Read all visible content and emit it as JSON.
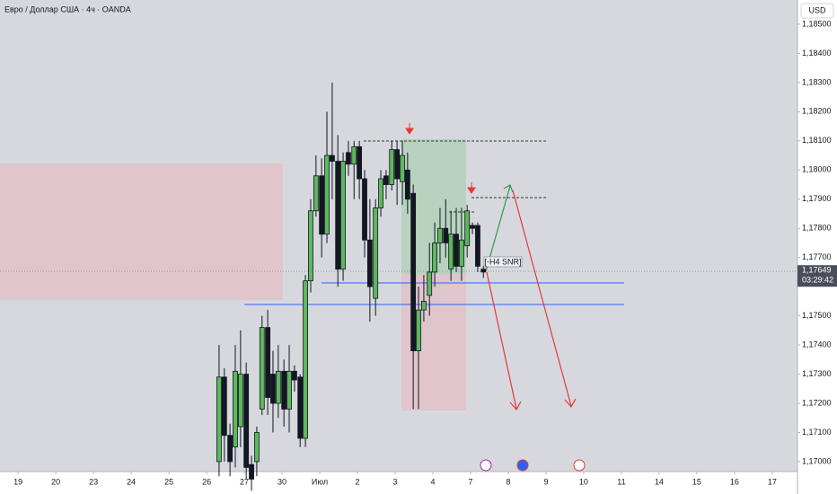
{
  "chart_data": {
    "type": "candlestick",
    "title": "Евро / Доллар США · 4ч · OANDA",
    "currency": "USD",
    "annotation": "[-H4 SNR]",
    "last_price": {
      "value": 1.17649,
      "label": "1,17649"
    },
    "countdown": "03:29:42",
    "up_color": "#5cb85c",
    "down_color": "#131722",
    "xlim": [
      -0.48,
      20.67
    ],
    "xticks": [
      {
        "value": 0,
        "label": "19"
      },
      {
        "value": 1,
        "label": "20"
      },
      {
        "value": 2,
        "label": "23"
      },
      {
        "value": 3,
        "label": "24"
      },
      {
        "value": 4,
        "label": "25"
      },
      {
        "value": 5,
        "label": "26"
      },
      {
        "value": 6,
        "label": "27"
      },
      {
        "value": 7,
        "label": "30"
      },
      {
        "value": 8,
        "label": "Июл"
      },
      {
        "value": 9,
        "label": "2"
      },
      {
        "value": 10,
        "label": "3"
      },
      {
        "value": 11,
        "label": "4"
      },
      {
        "value": 12,
        "label": "7"
      },
      {
        "value": 13,
        "label": "8"
      },
      {
        "value": 14,
        "label": "9"
      },
      {
        "value": 15,
        "label": "10"
      },
      {
        "value": 16,
        "label": "11"
      },
      {
        "value": 17,
        "label": "14"
      },
      {
        "value": 18,
        "label": "15"
      },
      {
        "value": 19,
        "label": "16"
      },
      {
        "value": 20,
        "label": "17"
      }
    ],
    "ylim": [
      1.16966,
      1.18583
    ],
    "yticks": [
      {
        "value": 1.17,
        "label": "1,17000"
      },
      {
        "value": 1.171,
        "label": "1,17100"
      },
      {
        "value": 1.172,
        "label": "1,17200"
      },
      {
        "value": 1.173,
        "label": "1,17300"
      },
      {
        "value": 1.174,
        "label": "1,17400"
      },
      {
        "value": 1.175,
        "label": "1,17500"
      },
      {
        "value": 1.177,
        "label": "1,17700"
      },
      {
        "value": 1.178,
        "label": "1,17800"
      },
      {
        "value": 1.179,
        "label": "1,17900"
      },
      {
        "value": 1.18,
        "label": "1,18000"
      },
      {
        "value": 1.181,
        "label": "1,18100"
      },
      {
        "value": 1.182,
        "label": "1,18200"
      },
      {
        "value": 1.183,
        "label": "1,18300"
      },
      {
        "value": 1.184,
        "label": "1,18400"
      },
      {
        "value": 1.185,
        "label": "1,18500"
      }
    ],
    "x": [
      5.33,
      5.47,
      5.62,
      5.76,
      5.9,
      6.05,
      6.19,
      6.33,
      6.47,
      6.62,
      6.76,
      6.9,
      7.05,
      7.19,
      7.33,
      7.48,
      7.62,
      7.76,
      7.9,
      8.05,
      8.19,
      8.33,
      8.48,
      8.62,
      8.76,
      8.91,
      9.05,
      9.19,
      9.33,
      9.48,
      9.62,
      9.76,
      9.91,
      10.05,
      10.19,
      10.33,
      10.48,
      10.62,
      10.76,
      10.91,
      11.05,
      11.19,
      11.34,
      11.48,
      11.62,
      11.76,
      11.91,
      12.05,
      12.19,
      12.34
    ],
    "open": [
      1.17,
      1.1729,
      1.1709,
      1.1705,
      1.1712,
      1.173,
      1.1699,
      1.17,
      1.1718,
      1.1746,
      1.173,
      1.172,
      1.1731,
      1.1718,
      1.1731,
      1.1729,
      1.1708,
      1.1762,
      1.1786,
      1.1798,
      1.1778,
      1.1805,
      1.1803,
      1.1766,
      1.1806,
      1.1802,
      1.1808,
      1.1797,
      1.1776,
      1.1756,
      1.1787,
      1.1798,
      1.1795,
      1.1807,
      1.1796,
      1.18,
      1.1792,
      1.1738,
      1.1752,
      1.1757,
      1.1765,
      1.1775,
      1.178,
      1.1766,
      1.1778,
      1.1767,
      1.1774,
      1.1781,
      1.1781,
      1.1766
    ],
    "high": [
      1.174,
      1.1732,
      1.1713,
      1.174,
      1.1745,
      1.1734,
      1.1702,
      1.1712,
      1.175,
      1.1752,
      1.1738,
      1.174,
      1.1735,
      1.174,
      1.1733,
      1.173,
      1.1764,
      1.179,
      1.1805,
      1.1804,
      1.182,
      1.183,
      1.1812,
      1.1806,
      1.181,
      1.181,
      1.181,
      1.18,
      1.179,
      1.179,
      1.18,
      1.18,
      1.181,
      1.181,
      1.181,
      1.1806,
      1.1795,
      1.176,
      1.1764,
      1.1775,
      1.1782,
      1.1787,
      1.179,
      1.1786,
      1.1787,
      1.1787,
      1.1788,
      1.1782,
      1.1782,
      1.1767
    ],
    "low": [
      1.1695,
      1.17,
      1.1695,
      1.1698,
      1.1705,
      1.1694,
      1.169,
      1.1695,
      1.1716,
      1.1716,
      1.171,
      1.1715,
      1.1712,
      1.171,
      1.1724,
      1.1705,
      1.1705,
      1.1758,
      1.1784,
      1.177,
      1.1775,
      1.179,
      1.176,
      1.1762,
      1.1798,
      1.179,
      1.179,
      1.177,
      1.1748,
      1.175,
      1.1784,
      1.179,
      1.1793,
      1.1788,
      1.1788,
      1.1785,
      1.1718,
      1.1718,
      1.1748,
      1.175,
      1.176,
      1.1768,
      1.177,
      1.1762,
      1.1765,
      1.1762,
      1.177,
      1.1778,
      1.1765,
      1.1763
    ],
    "close": [
      1.1729,
      1.1709,
      1.17,
      1.1731,
      1.173,
      1.1698,
      1.1694,
      1.171,
      1.1746,
      1.1722,
      1.172,
      1.1731,
      1.1718,
      1.1731,
      1.1728,
      1.1708,
      1.1762,
      1.1786,
      1.1798,
      1.1778,
      1.1805,
      1.1803,
      1.1766,
      1.1803,
      1.1802,
      1.1808,
      1.1797,
      1.1776,
      1.176,
      1.1787,
      1.1797,
      1.1795,
      1.1807,
      1.1797,
      1.1805,
      1.179,
      1.1738,
      1.1752,
      1.1755,
      1.1765,
      1.1775,
      1.178,
      1.1775,
      1.1778,
      1.1767,
      1.1776,
      1.1786,
      1.178,
      1.1767,
      1.1765
    ]
  }
}
